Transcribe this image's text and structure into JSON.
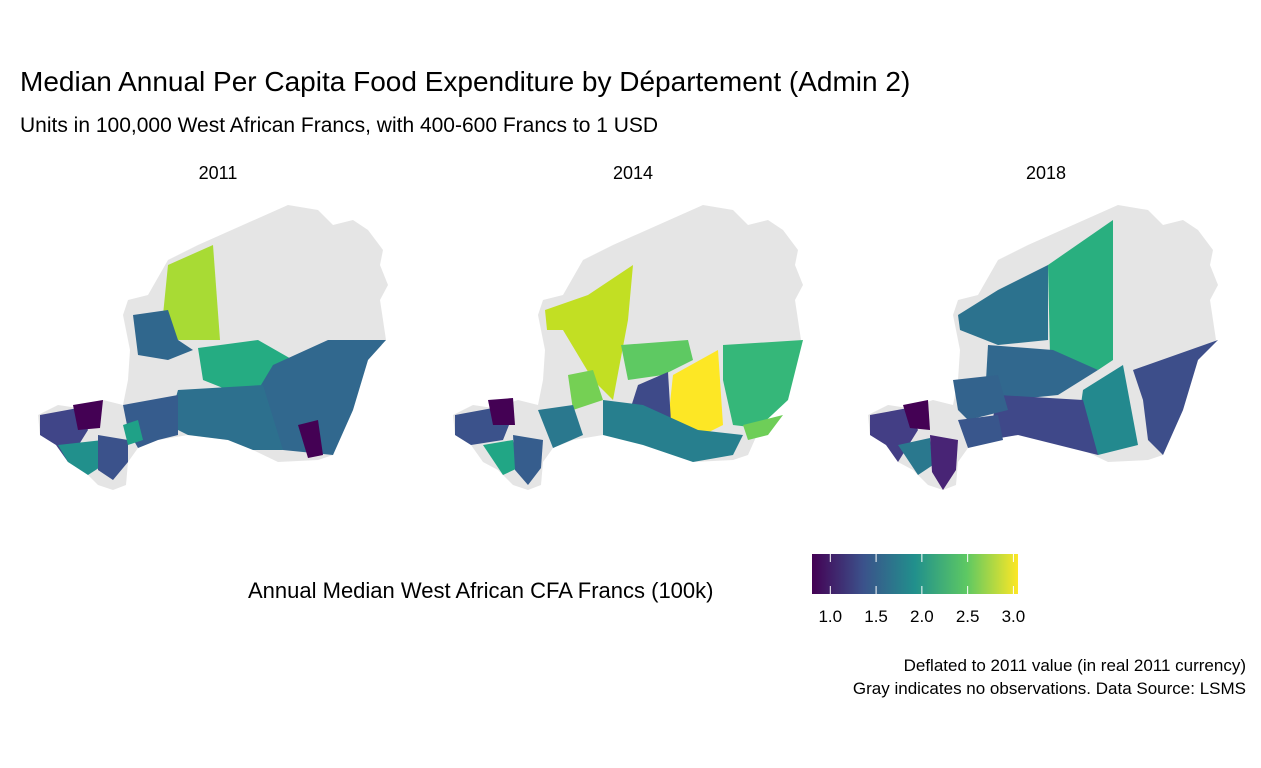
{
  "title": "Median Annual Per Capita Food Expenditure by Département (Admin 2)",
  "subtitle": "Units in 100,000 West African Francs, with 400-600 Francs to 1 USD",
  "panels": [
    {
      "year": "2011"
    },
    {
      "year": "2014"
    },
    {
      "year": "2018"
    }
  ],
  "legend": {
    "title": "Annual Median West African CFA Francs (100k)",
    "ticks": [
      "1.0",
      "1.5",
      "2.0",
      "2.5",
      "3.0"
    ],
    "range": [
      0.8,
      3.05
    ],
    "palette": [
      "#440154",
      "#3b528b",
      "#21908c",
      "#5dc863",
      "#fde725"
    ],
    "no_data_color": "#e5e5e5"
  },
  "caption": {
    "line1": "Deflated to 2011 value (in real 2011 currency)",
    "line2": "Gray indicates no observations. Data Source: LSMS"
  }
}
